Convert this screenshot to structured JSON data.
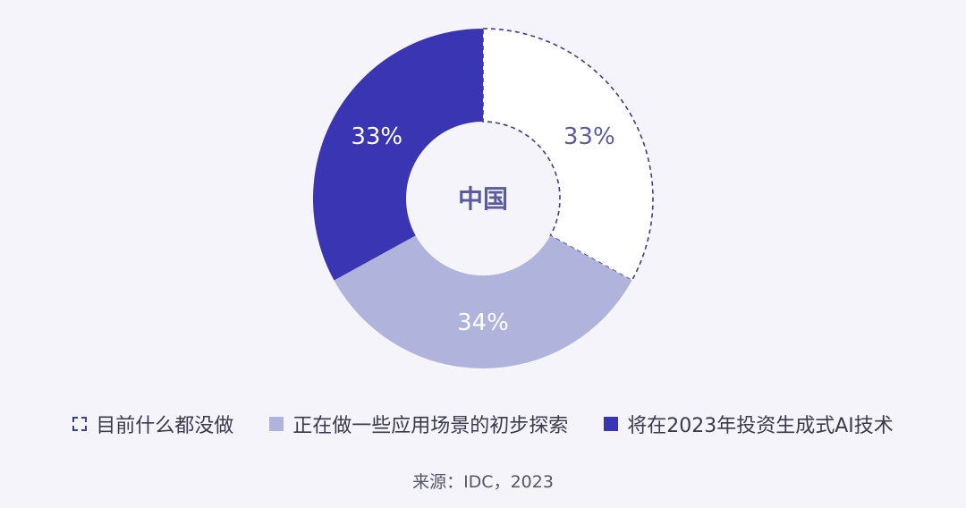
{
  "chart_data": {
    "type": "pie",
    "donut": true,
    "center_label": "中国",
    "slices": [
      {
        "label": "目前什么都没做",
        "value": 33,
        "display": "33%",
        "color": "#ffffff",
        "style": "dashed-outline"
      },
      {
        "label": "正在做一些应用场景的初步探索",
        "value": 34,
        "display": "34%",
        "color": "#b0b4dc",
        "style": "fill"
      },
      {
        "label": "将在2023年投资生成式AI技术",
        "value": 33,
        "display": "33%",
        "color": "#3a35b3",
        "style": "fill"
      }
    ],
    "legend_position": "bottom",
    "source": "来源：IDC，2023"
  },
  "colors": {
    "outline": "#3a3f8f",
    "center_text": "#5a5c9e",
    "label_light": "#ffffff",
    "label_dark": "#5a5c9e"
  }
}
